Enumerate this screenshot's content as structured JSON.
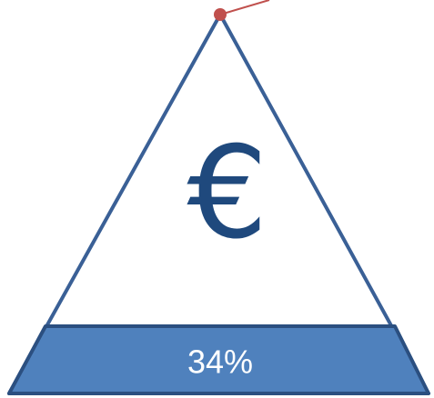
{
  "icon": "€",
  "band_label": "34%"
}
